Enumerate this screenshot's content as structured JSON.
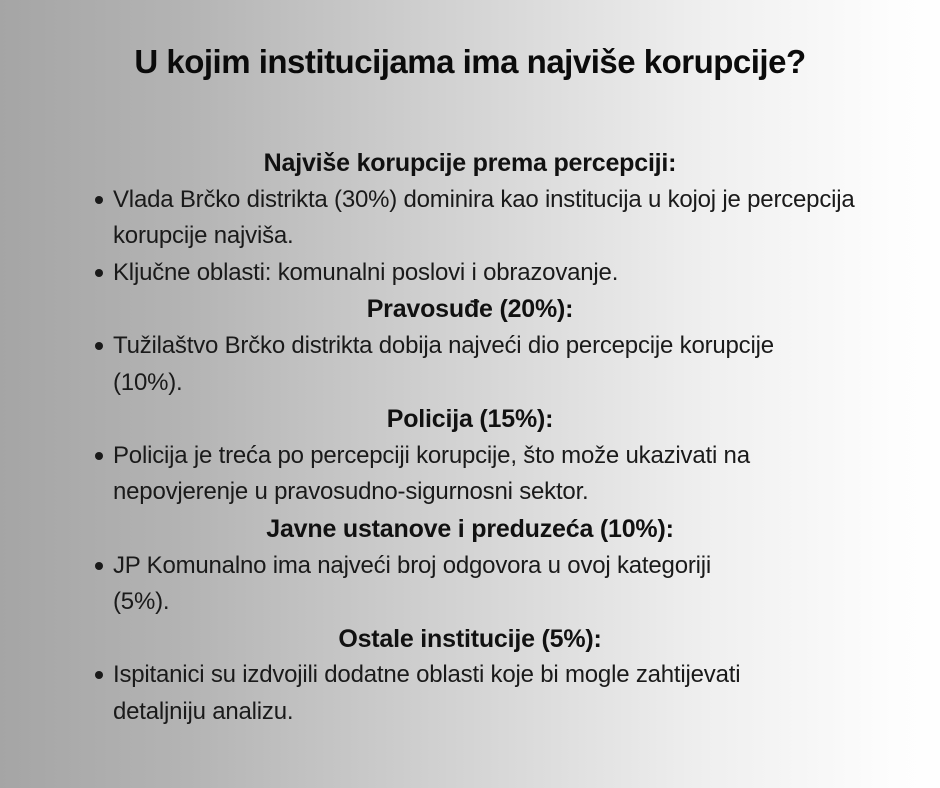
{
  "page": {
    "title": "U kojim institucijama ima najviše korupcije?",
    "background_left": "#a6a6a6",
    "background_right": "#fdfdfd",
    "text_color": "#1a1a1a"
  },
  "sections": [
    {
      "heading": "Najviše korupcije prema percepciji:",
      "bullets": [
        "Vlada Brčko distrikta (30%) dominira kao institucija u kojoj je percepcija korupcije najviša.",
        "Ključne oblasti: komunalni poslovi i obrazovanje."
      ]
    },
    {
      "heading": "Pravosuđe (20%):",
      "bullets": [
        "Tužilaštvo Brčko distrikta dobija najveći dio percepcije korupcije (10%)."
      ]
    },
    {
      "heading": "Policija (15%):",
      "bullets": [
        "Policija je treća po percepciji korupcije, što može ukazivati na nepovjerenje u pravosudno-sigurnosni sektor."
      ]
    },
    {
      "heading": "Javne ustanove i preduzeća (10%):",
      "bullets": [
        "JP Komunalno ima najveći broj odgovora u ovoj kategoriji (5%)."
      ]
    },
    {
      "heading": "Ostale institucije (5%):",
      "bullets": [
        "Ispitanici su izdvojili dodatne oblasti koje bi mogle zahtijevati detaljniju analizu."
      ]
    }
  ]
}
